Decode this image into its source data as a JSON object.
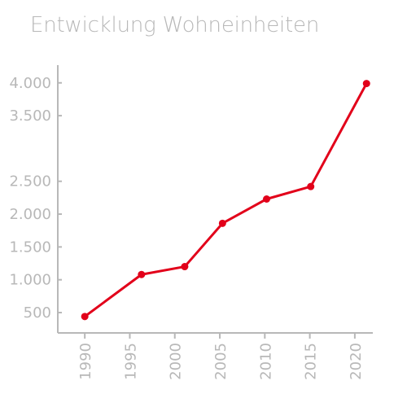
{
  "chart_data": {
    "type": "line",
    "title": "Entwicklung Wohneinheiten",
    "xlabel": "",
    "ylabel": "",
    "xlim": [
      1987,
      2022
    ],
    "ylim": [
      190,
      4270
    ],
    "x_ticks": [
      "1990",
      "1995",
      "2000",
      "2005",
      "2010",
      "2015",
      "2020"
    ],
    "y_ticks": [
      "500",
      "1.000",
      "1.500",
      "2.000",
      "2.500",
      "3.500",
      "4.000"
    ],
    "series": [
      {
        "color": "#e2001a",
        "points": [
          {
            "x": 1990,
            "y": 440
          },
          {
            "x": 1996.3,
            "y": 1080
          },
          {
            "x": 2001.1,
            "y": 1200
          },
          {
            "x": 2005.3,
            "y": 1860
          },
          {
            "x": 2010.2,
            "y": 2230
          },
          {
            "x": 2015.1,
            "y": 2420
          },
          {
            "x": 2021.3,
            "y": 3990
          }
        ]
      }
    ],
    "grid": false,
    "legend": "none"
  },
  "colors": {
    "line": "#e2001a",
    "axis": "#b8b8b8",
    "text": "#b8b8b8"
  }
}
